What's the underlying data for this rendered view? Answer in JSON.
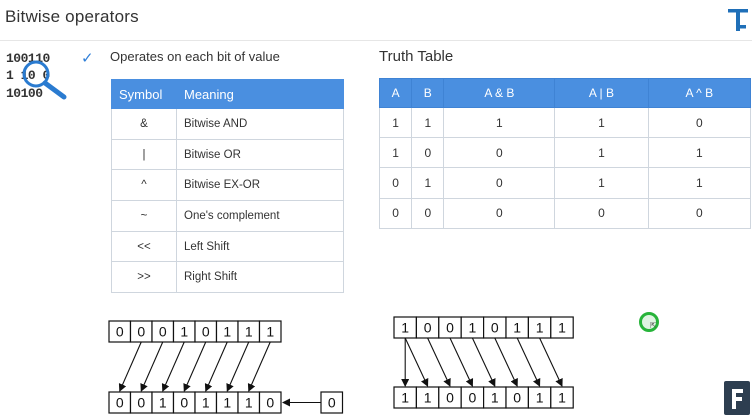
{
  "title": "Bitwise operators",
  "brand_logo_top": "T-logo",
  "brand_logo_bottom": "F-logo",
  "bits_icon": [
    "100110",
    "1 10 0",
    "10100"
  ],
  "description": "Operates on each bit of value",
  "operators_table": {
    "headers": [
      "Symbol",
      "Meaning"
    ],
    "rows": [
      {
        "symbol": "&",
        "meaning": "Bitwise AND"
      },
      {
        "symbol": "|",
        "meaning": "Bitwise OR"
      },
      {
        "symbol": "^",
        "meaning": "Bitwise EX-OR"
      },
      {
        "symbol": "~",
        "meaning": "One's complement"
      },
      {
        "symbol": "<<",
        "meaning": "Left Shift"
      },
      {
        "symbol": ">>",
        "meaning": "Right Shift"
      }
    ]
  },
  "truth_table": {
    "title": "Truth Table",
    "headers": [
      "A",
      "B",
      "A & B",
      "A | B",
      "A ^ B"
    ],
    "rows": [
      [
        "1",
        "1",
        "1",
        "1",
        "0"
      ],
      [
        "1",
        "0",
        "0",
        "1",
        "1"
      ],
      [
        "0",
        "1",
        "0",
        "1",
        "1"
      ],
      [
        "0",
        "0",
        "0",
        "0",
        "0"
      ]
    ]
  },
  "left_shift": {
    "input_bits": [
      "0",
      "0",
      "0",
      "1",
      "0",
      "1",
      "1",
      "1"
    ],
    "output_bits": [
      "0",
      "0",
      "1",
      "0",
      "1",
      "1",
      "1",
      "0"
    ],
    "fill_bit": "0"
  },
  "right_shift": {
    "input_bits": [
      "1",
      "0",
      "0",
      "1",
      "0",
      "1",
      "1",
      "1"
    ],
    "output_bits": [
      "1",
      "1",
      "0",
      "0",
      "1",
      "0",
      "1",
      "1"
    ]
  },
  "colors": {
    "accent": "#4a8fe0",
    "check": "#2f7fd8",
    "cursor": "#27b43a",
    "logo_dark": "#2d3e50"
  }
}
